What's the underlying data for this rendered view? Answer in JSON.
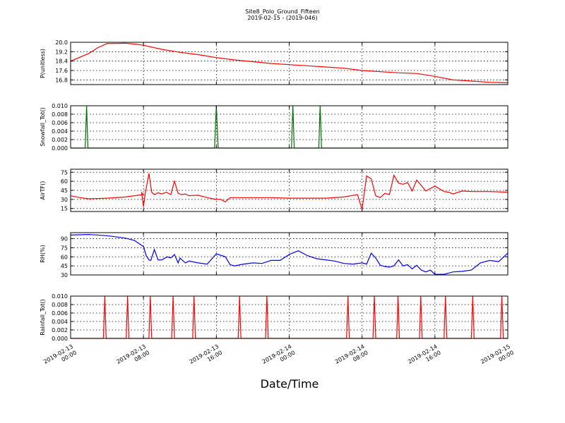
{
  "title": "Site8_Polo_Ground_Fifteen",
  "subtitle": "2019-02-15 - (2019-046)",
  "xlabel": "Date/Time",
  "xticks": [
    "2019-02-13\n00:00",
    "2019-02-13\n08:00",
    "2019-02-13\n16:00",
    "2019-02-14\n00:00",
    "2019-02-14\n08:00",
    "2019-02-14\n16:00",
    "2019-02-15\n00:00"
  ],
  "chart_data": [
    {
      "type": "line",
      "ylabel": "P(unitless)",
      "ylim": [
        16.4,
        20.0
      ],
      "yticks": [
        16.8,
        17.6,
        18.4,
        19.2,
        20.0
      ],
      "ytick_labels": [
        "16.8",
        "17.6",
        "18.4",
        "19.2",
        "20.0"
      ],
      "color": "#ff0000",
      "grid": true,
      "x_hours": [
        0,
        2,
        3,
        4,
        5,
        6,
        7,
        8,
        10,
        12,
        14,
        16,
        18,
        20,
        22,
        24,
        26,
        28,
        30,
        32,
        34,
        36,
        38,
        40,
        42,
        44,
        46,
        48
      ],
      "values": [
        18.4,
        19.05,
        19.55,
        19.9,
        19.9,
        19.92,
        19.85,
        19.75,
        19.4,
        19.15,
        18.95,
        18.7,
        18.5,
        18.35,
        18.2,
        18.1,
        18.0,
        17.9,
        17.8,
        17.6,
        17.5,
        17.4,
        17.35,
        17.1,
        16.8,
        16.7,
        16.6,
        16.55
      ]
    },
    {
      "type": "line",
      "ylabel": "Snowfall_Tot()",
      "ylim": [
        0.0,
        0.01
      ],
      "yticks": [
        0.0,
        0.002,
        0.004,
        0.006,
        0.008,
        0.01
      ],
      "ytick_labels": [
        "0.000",
        "0.002",
        "0.004",
        "0.006",
        "0.008",
        "0.010"
      ],
      "color": "#007000",
      "grid": true,
      "x_hours": [
        0,
        1.6,
        1.75,
        1.9,
        15.8,
        16.0,
        16.2,
        24.25,
        24.4,
        24.55,
        27.25,
        27.4,
        27.55,
        48
      ],
      "values": [
        0,
        0,
        0.01,
        0,
        0,
        0.01,
        0,
        0,
        0.01,
        0,
        0,
        0.01,
        0,
        0
      ]
    },
    {
      "type": "line",
      "ylabel": "AirTF()",
      "ylim": [
        10,
        80
      ],
      "yticks": [
        15,
        30,
        45,
        60,
        75
      ],
      "ytick_labels": [
        "15",
        "30",
        "45",
        "60",
        "75"
      ],
      "color": "#ff0000",
      "grid": true,
      "x_hours": [
        0,
        1,
        2,
        4,
        6,
        8,
        7.8,
        8.0,
        8.2,
        8.6,
        8.9,
        9.2,
        9.6,
        10,
        10.5,
        11,
        11.4,
        11.8,
        12.2,
        12.6,
        13,
        14,
        15,
        16,
        16.5,
        17,
        17.5,
        18,
        20,
        22,
        24,
        26,
        28,
        30,
        31.5,
        32,
        32.2,
        32.5,
        32.8,
        33,
        33.5,
        34,
        34.5,
        35,
        35.5,
        36,
        36.5,
        37,
        37.5,
        38,
        38.5,
        39,
        40,
        41,
        41.5,
        42,
        43,
        44,
        46,
        48
      ],
      "values": [
        36,
        33,
        31,
        32,
        34,
        38,
        41,
        18,
        40,
        73,
        42,
        38,
        41,
        39,
        42,
        38,
        60,
        40,
        38,
        39,
        36,
        37,
        33,
        30,
        30,
        26,
        33,
        33,
        33,
        33,
        32,
        32,
        32,
        34,
        38,
        13,
        35,
        69,
        66,
        64,
        36,
        33,
        40,
        38,
        70,
        57,
        55,
        58,
        44,
        62,
        53,
        44,
        52,
        43,
        42,
        39,
        44,
        43,
        43,
        42
      ]
    },
    {
      "type": "line",
      "ylabel": "RH(%)",
      "ylim": [
        30,
        100
      ],
      "yticks": [
        30,
        45,
        60,
        75,
        90
      ],
      "ytick_labels": [
        "30",
        "45",
        "60",
        "75",
        "90"
      ],
      "color": "#0000ff",
      "grid": true,
      "x_hours": [
        0,
        2,
        4,
        6,
        7,
        8,
        8.3,
        8.6,
        8.8,
        9.2,
        9.6,
        10,
        10.6,
        11,
        11.4,
        11.8,
        12,
        12.6,
        13,
        14,
        15,
        16,
        17,
        17.5,
        18,
        19,
        20,
        21,
        22,
        23,
        24,
        25,
        26,
        27,
        28,
        29,
        30,
        31,
        32,
        32.5,
        33,
        33.5,
        34,
        34.5,
        35,
        35.5,
        36,
        36.5,
        37,
        37.5,
        38,
        38.5,
        39,
        39.5,
        40,
        41,
        42,
        43,
        44,
        45,
        46,
        47,
        48
      ],
      "values": [
        96,
        97,
        95,
        91,
        87,
        77,
        62,
        55,
        54,
        72,
        55,
        55,
        60,
        58,
        64,
        50,
        58,
        50,
        53,
        50,
        48,
        65,
        60,
        47,
        45,
        48,
        50,
        49,
        54,
        54,
        64,
        70,
        62,
        57,
        55,
        53,
        49,
        48,
        50,
        48,
        66,
        58,
        46,
        44,
        43,
        45,
        55,
        45,
        47,
        40,
        46,
        38,
        35,
        38,
        31,
        31,
        35,
        36,
        38,
        50,
        54,
        52,
        66
      ]
    },
    {
      "type": "line",
      "ylabel": "Rainfall_Tot()",
      "ylim": [
        0.0,
        0.01
      ],
      "yticks": [
        0.0,
        0.002,
        0.004,
        0.006,
        0.008,
        0.01
      ],
      "ytick_labels": [
        "0.000",
        "0.002",
        "0.004",
        "0.006",
        "0.008",
        "0.010"
      ],
      "color": "#ff0000",
      "grid": true,
      "x_hours": [
        0,
        3.6,
        3.75,
        3.9,
        6.1,
        6.25,
        6.4,
        8.6,
        8.75,
        8.9,
        11.1,
        11.25,
        11.4,
        13.4,
        13.55,
        13.7,
        18.4,
        18.55,
        18.7,
        21.4,
        21.55,
        21.7,
        30.3,
        30.45,
        30.6,
        33.2,
        33.35,
        33.5,
        35.8,
        35.95,
        36.1,
        38.3,
        38.45,
        38.6,
        41.0,
        41.15,
        41.3,
        44.0,
        44.15,
        44.3,
        47.2,
        47.35,
        47.5,
        48
      ],
      "values": [
        0,
        0,
        0.01,
        0,
        0,
        0.01,
        0,
        0,
        0.01,
        0,
        0,
        0.01,
        0,
        0,
        0.01,
        0,
        0,
        0.01,
        0,
        0,
        0.01,
        0,
        0,
        0.01,
        0,
        0,
        0.01,
        0,
        0,
        0.01,
        0,
        0,
        0.01,
        0,
        0,
        0.01,
        0,
        0,
        0.01,
        0,
        0,
        0.01,
        0,
        0
      ]
    }
  ]
}
